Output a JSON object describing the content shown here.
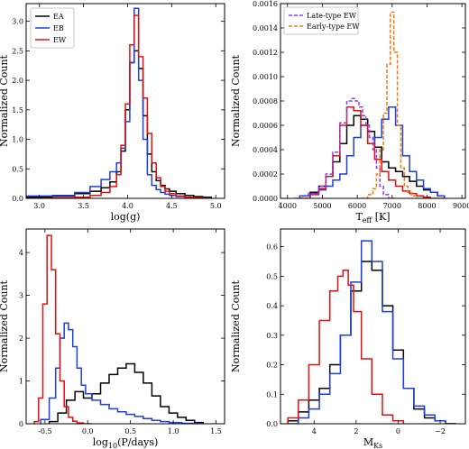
{
  "chart_data": [
    {
      "type": "line",
      "drawstyle": "steps",
      "xlabel": "log(g)",
      "ylabel": "Normalized Count",
      "xlim": [
        2.85,
        5.1
      ],
      "ylim": [
        0,
        3.3
      ],
      "xticks": [
        3.0,
        3.5,
        4.0,
        4.5,
        5.0
      ],
      "xticklabels": [
        "3.0",
        "3.5",
        "4.0",
        "4.5",
        "5.0"
      ],
      "yticks": [
        0,
        0.5,
        1.0,
        1.5,
        2.0,
        2.5,
        3.0
      ],
      "yticklabels": [
        "0.0",
        "0.5",
        "1.0",
        "1.5",
        "2.0",
        "2.5",
        "3.0"
      ],
      "legend_position": "top-left",
      "series": [
        {
          "name": "EA",
          "color": "#000000",
          "dash": "",
          "x": [
            3.0,
            3.3,
            3.5,
            3.65,
            3.75,
            3.85,
            3.9,
            3.95,
            4.0,
            4.05,
            4.1,
            4.15,
            4.2,
            4.25,
            4.3,
            4.35,
            4.4,
            4.45,
            4.5,
            4.6,
            4.7,
            4.8,
            4.9
          ],
          "y": [
            0.02,
            0.04,
            0.08,
            0.12,
            0.18,
            0.28,
            0.45,
            0.8,
            1.5,
            2.3,
            2.5,
            2.2,
            1.4,
            0.75,
            0.45,
            0.3,
            0.22,
            0.16,
            0.12,
            0.08,
            0.05,
            0.03,
            0.02
          ]
        },
        {
          "name": "EB",
          "color": "#1f3fdb",
          "dash": "",
          "x": [
            3.0,
            3.3,
            3.5,
            3.65,
            3.75,
            3.85,
            3.9,
            3.95,
            4.0,
            4.05,
            4.1,
            4.15,
            4.2,
            4.25,
            4.3,
            4.35,
            4.4,
            4.45,
            4.5,
            4.6,
            4.7,
            4.8,
            4.9
          ],
          "y": [
            0.04,
            0.05,
            0.1,
            0.2,
            0.32,
            0.45,
            0.6,
            0.85,
            1.3,
            2.3,
            3.22,
            2.0,
            1.0,
            0.4,
            0.22,
            0.15,
            0.1,
            0.07,
            0.05,
            0.03,
            0.02,
            0.01,
            0.0
          ]
        },
        {
          "name": "EW",
          "color": "#e01010",
          "dash": "",
          "x": [
            3.0,
            3.3,
            3.5,
            3.65,
            3.75,
            3.85,
            3.9,
            3.95,
            4.0,
            4.05,
            4.1,
            4.15,
            4.2,
            4.25,
            4.3,
            4.35,
            4.4,
            4.45,
            4.5,
            4.6,
            4.7,
            4.8,
            4.9
          ],
          "y": [
            0.0,
            0.01,
            0.02,
            0.05,
            0.1,
            0.2,
            0.4,
            0.9,
            1.6,
            2.6,
            3.1,
            2.4,
            1.7,
            1.1,
            0.6,
            0.35,
            0.2,
            0.12,
            0.08,
            0.04,
            0.02,
            0.01,
            0.0
          ]
        }
      ]
    },
    {
      "type": "line",
      "drawstyle": "steps",
      "xlabel": "T",
      "xlabel_sub": "eff",
      "xlabel_tail": " [K]",
      "ylabel": "Normalized Count",
      "xlim": [
        3800,
        9100
      ],
      "ylim": [
        0,
        0.0016
      ],
      "xticks": [
        4000,
        5000,
        6000,
        7000,
        8000,
        9000
      ],
      "xticklabels": [
        "4000",
        "5000",
        "6000",
        "7000",
        "8000",
        "9000"
      ],
      "yticks": [
        0,
        0.0002,
        0.0004,
        0.0006,
        0.0008,
        0.001,
        0.0012,
        0.0014,
        0.0016
      ],
      "yticklabels": [
        "0.0000",
        "0.0002",
        "0.0004",
        "0.0006",
        "0.0008",
        "0.0010",
        "0.0012",
        "0.0014",
        "0.0016"
      ],
      "legend_position": "top-left",
      "series": [
        {
          "name": "",
          "color": "#000000",
          "dash": "",
          "x": [
            4500,
            4800,
            5000,
            5200,
            5400,
            5600,
            5800,
            6000,
            6200,
            6400,
            6600,
            6800,
            7000,
            7200,
            7400,
            7600,
            7800,
            8000,
            8200,
            8400
          ],
          "y": [
            2e-05,
            5e-05,
            0.0001,
            0.00018,
            0.0003,
            0.00045,
            0.0006,
            0.00068,
            0.00065,
            0.00055,
            0.00042,
            0.0003,
            0.00025,
            0.00022,
            0.00018,
            0.00014,
            0.0001,
            7e-05,
            5e-05,
            2e-05
          ]
        },
        {
          "name": "",
          "color": "#1f3fdb",
          "dash": "",
          "x": [
            4500,
            4800,
            5000,
            5200,
            5400,
            5600,
            5800,
            6000,
            6200,
            6400,
            6600,
            6800,
            7000,
            7200,
            7400,
            7600,
            7800,
            8000,
            8200,
            8400
          ],
          "y": [
            2e-05,
            4e-05,
            7e-05,
            0.0001,
            0.00015,
            0.0002,
            0.00035,
            0.0005,
            0.0006,
            0.00045,
            0.0005,
            0.00065,
            0.00075,
            0.0006,
            0.00035,
            0.00022,
            0.00015,
            8e-05,
            5e-05,
            2e-05
          ]
        },
        {
          "name": "",
          "color": "#e01010",
          "dash": "",
          "x": [
            4500,
            4800,
            5000,
            5200,
            5400,
            5600,
            5800,
            6000,
            6200,
            6400,
            6600,
            6800,
            7000,
            7200,
            7400,
            7600,
            7800,
            8000,
            8200,
            8400
          ],
          "y": [
            0.0,
            3e-05,
            8e-05,
            0.00018,
            0.00035,
            0.0006,
            0.00075,
            0.00072,
            0.0006,
            0.00045,
            0.00032,
            0.00022,
            0.00015,
            0.0001,
            6e-05,
            4e-05,
            2e-05,
            1e-05,
            0.0,
            0.0
          ]
        },
        {
          "name": "Late-type EW",
          "color": "#8a3ff5",
          "dash": "4,2",
          "x": [
            4400,
            4800,
            5000,
            5200,
            5400,
            5600,
            5800,
            5900,
            6000,
            6100,
            6200,
            6300,
            6400,
            6500,
            6600,
            6700,
            6800,
            7000
          ],
          "y": [
            0.0,
            4e-05,
            0.0001,
            0.0002,
            0.00038,
            0.00062,
            0.0008,
            0.00082,
            0.0008,
            0.00075,
            0.00068,
            0.0006,
            0.0005,
            0.0004,
            0.00025,
            0.0001,
            3e-05,
            0.0
          ]
        },
        {
          "name": "Early-type EW",
          "color": "#f07a10",
          "dash": "4,2",
          "x": [
            6200,
            6400,
            6500,
            6600,
            6700,
            6800,
            6900,
            7000,
            7100,
            7200,
            7300,
            7400,
            7500,
            7600,
            7800
          ],
          "y": [
            0.0,
            3e-05,
            8e-05,
            0.0002,
            0.0004,
            0.0007,
            0.0011,
            0.00153,
            0.0012,
            0.0006,
            0.00025,
            0.0001,
            5e-05,
            2e-05,
            0.0
          ]
        }
      ]
    },
    {
      "type": "line",
      "drawstyle": "steps",
      "xlabel": "log",
      "xlabel_sub": "10",
      "xlabel_tail": "(P/days)",
      "ylabel": "Normalized Count",
      "xlim": [
        -0.72,
        1.6
      ],
      "ylim": [
        0,
        4.55
      ],
      "xticks": [
        -0.5,
        0.0,
        0.5,
        1.0,
        1.5
      ],
      "xticklabels": [
        "-0.5",
        "0.0",
        "0.5",
        "1.0",
        "1.5"
      ],
      "yticks": [
        0,
        1,
        2,
        3,
        4
      ],
      "yticklabels": [
        "0",
        "1",
        "2",
        "3",
        "4"
      ],
      "series": [
        {
          "name": "",
          "color": "#000000",
          "dash": "",
          "x": [
            -0.4,
            -0.3,
            -0.2,
            -0.1,
            0.0,
            0.1,
            0.2,
            0.3,
            0.4,
            0.5,
            0.6,
            0.7,
            0.8,
            0.9,
            1.0,
            1.1,
            1.2,
            1.3
          ],
          "y": [
            0.05,
            0.25,
            0.55,
            0.75,
            0.6,
            0.7,
            0.95,
            1.15,
            1.3,
            1.4,
            1.2,
            0.95,
            0.65,
            0.4,
            0.25,
            0.15,
            0.08,
            0.03
          ]
        },
        {
          "name": "",
          "color": "#1f3fdb",
          "dash": "",
          "x": [
            -0.5,
            -0.4,
            -0.35,
            -0.3,
            -0.25,
            -0.2,
            -0.15,
            -0.1,
            -0.05,
            0.0,
            0.1,
            0.2,
            0.3,
            0.4,
            0.5,
            0.6,
            0.7,
            0.8,
            0.9,
            1.0,
            1.2
          ],
          "y": [
            0.1,
            0.6,
            1.3,
            2.0,
            2.35,
            2.2,
            1.8,
            1.3,
            0.9,
            0.7,
            0.55,
            0.45,
            0.35,
            0.28,
            0.22,
            0.17,
            0.12,
            0.08,
            0.05,
            0.03,
            0.01
          ]
        },
        {
          "name": "",
          "color": "#e01010",
          "dash": "",
          "x": [
            -0.6,
            -0.55,
            -0.5,
            -0.45,
            -0.4,
            -0.35,
            -0.3,
            -0.25,
            -0.2,
            -0.15,
            -0.1,
            0.0
          ],
          "y": [
            0.05,
            0.6,
            2.8,
            4.4,
            3.6,
            2.1,
            1.0,
            0.4,
            0.15,
            0.06,
            0.02,
            0.0
          ]
        }
      ]
    },
    {
      "type": "line",
      "drawstyle": "steps",
      "xlabel": "M",
      "xlabel_sub": "Ks",
      "ylabel": "Normalized Count",
      "xlim": [
        5.6,
        -3.2
      ],
      "ylim": [
        0,
        0.66
      ],
      "xticks": [
        4,
        2,
        0,
        -2
      ],
      "xticklabels": [
        "4",
        "2",
        "0",
        "−2"
      ],
      "yticks": [
        0,
        0.1,
        0.2,
        0.3,
        0.4,
        0.5,
        0.6
      ],
      "yticklabels": [
        "0.0",
        "0.1",
        "0.2",
        "0.3",
        "0.4",
        "0.5",
        "0.6"
      ],
      "series": [
        {
          "name": "",
          "color": "#000000",
          "dash": "",
          "x": [
            5.0,
            4.5,
            4.0,
            3.5,
            3.0,
            2.5,
            2.0,
            1.5,
            1.0,
            0.5,
            0.0,
            -0.5,
            -1.0,
            -1.5,
            -2.0,
            -2.5
          ],
          "y": [
            0.01,
            0.04,
            0.08,
            0.12,
            0.2,
            0.3,
            0.45,
            0.55,
            0.52,
            0.4,
            0.25,
            0.12,
            0.05,
            0.02,
            0.01,
            0.0
          ]
        },
        {
          "name": "",
          "color": "#1f3fdb",
          "dash": "",
          "x": [
            5.0,
            4.5,
            4.0,
            3.5,
            3.0,
            2.5,
            2.0,
            1.5,
            1.0,
            0.5,
            0.0,
            -0.5,
            -1.0,
            -1.5,
            -2.0,
            -2.5
          ],
          "y": [
            0.0,
            0.02,
            0.05,
            0.1,
            0.17,
            0.3,
            0.48,
            0.62,
            0.55,
            0.38,
            0.22,
            0.12,
            0.06,
            0.03,
            0.01,
            0.0
          ]
        },
        {
          "name": "",
          "color": "#e01010",
          "dash": "",
          "x": [
            5.0,
            4.5,
            4.0,
            3.5,
            3.0,
            2.75,
            2.5,
            2.25,
            2.0,
            1.5,
            1.0,
            0.5,
            0.0
          ],
          "y": [
            0.02,
            0.08,
            0.2,
            0.35,
            0.45,
            0.5,
            0.52,
            0.47,
            0.38,
            0.22,
            0.1,
            0.03,
            0.01
          ]
        }
      ]
    }
  ]
}
